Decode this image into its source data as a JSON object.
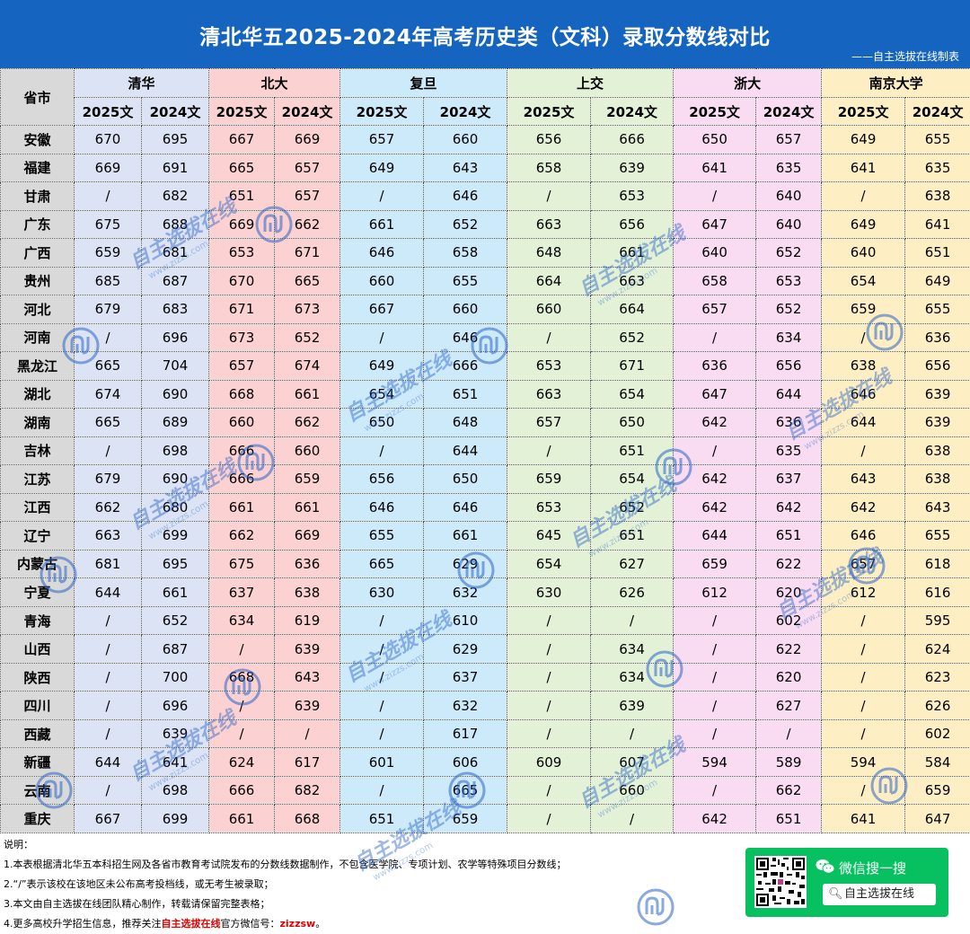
{
  "header": {
    "title": "清北华五2025-2024年高考历史类（文科）录取分数线对比",
    "credit": "——自主选拔在线制表"
  },
  "table": {
    "province_header": "省市",
    "universities": [
      "清华",
      "北大",
      "复旦",
      "上交",
      "浙大",
      "南京大学"
    ],
    "year_labels": [
      "2025文",
      "2024文"
    ],
    "rows": [
      {
        "province": "安徽",
        "scores": [
          "670",
          "695",
          "667",
          "669",
          "657",
          "660",
          "656",
          "666",
          "650",
          "657",
          "649",
          "655"
        ]
      },
      {
        "province": "福建",
        "scores": [
          "669",
          "691",
          "665",
          "657",
          "649",
          "643",
          "658",
          "639",
          "641",
          "635",
          "641",
          "635"
        ]
      },
      {
        "province": "甘肃",
        "scores": [
          "/",
          "682",
          "651",
          "657",
          "/",
          "646",
          "/",
          "653",
          "/",
          "640",
          "/",
          "638"
        ]
      },
      {
        "province": "广东",
        "scores": [
          "675",
          "688",
          "669",
          "662",
          "661",
          "652",
          "663",
          "656",
          "647",
          "640",
          "649",
          "641"
        ]
      },
      {
        "province": "广西",
        "scores": [
          "659",
          "681",
          "653",
          "671",
          "646",
          "658",
          "648",
          "661",
          "640",
          "652",
          "640",
          "651"
        ]
      },
      {
        "province": "贵州",
        "scores": [
          "685",
          "687",
          "670",
          "665",
          "660",
          "655",
          "664",
          "663",
          "658",
          "653",
          "654",
          "649"
        ]
      },
      {
        "province": "河北",
        "scores": [
          "679",
          "683",
          "671",
          "673",
          "667",
          "660",
          "660",
          "664",
          "657",
          "652",
          "659",
          "655"
        ]
      },
      {
        "province": "河南",
        "scores": [
          "/",
          "696",
          "673",
          "652",
          "/",
          "646",
          "/",
          "652",
          "/",
          "634",
          "/",
          "636"
        ]
      },
      {
        "province": "黑龙江",
        "scores": [
          "665",
          "704",
          "657",
          "674",
          "649",
          "666",
          "653",
          "671",
          "636",
          "656",
          "638",
          "656"
        ]
      },
      {
        "province": "湖北",
        "scores": [
          "674",
          "690",
          "668",
          "661",
          "654",
          "651",
          "663",
          "654",
          "647",
          "644",
          "646",
          "639"
        ]
      },
      {
        "province": "湖南",
        "scores": [
          "665",
          "689",
          "660",
          "662",
          "650",
          "648",
          "657",
          "650",
          "642",
          "636",
          "644",
          "639"
        ]
      },
      {
        "province": "吉林",
        "scores": [
          "/",
          "698",
          "666",
          "660",
          "/",
          "644",
          "/",
          "651",
          "/",
          "635",
          "/",
          "638"
        ]
      },
      {
        "province": "江苏",
        "scores": [
          "679",
          "690",
          "666",
          "659",
          "656",
          "650",
          "659",
          "654",
          "642",
          "637",
          "643",
          "638"
        ]
      },
      {
        "province": "江西",
        "scores": [
          "662",
          "680",
          "661",
          "661",
          "646",
          "646",
          "653",
          "652",
          "642",
          "642",
          "642",
          "643"
        ]
      },
      {
        "province": "辽宁",
        "scores": [
          "663",
          "699",
          "662",
          "669",
          "655",
          "661",
          "645",
          "651",
          "644",
          "651",
          "646",
          "655"
        ]
      },
      {
        "province": "内蒙古",
        "scores": [
          "681",
          "695",
          "675",
          "636",
          "665",
          "629",
          "654",
          "627",
          "659",
          "622",
          "657",
          "618"
        ]
      },
      {
        "province": "宁夏",
        "scores": [
          "644",
          "661",
          "637",
          "638",
          "630",
          "632",
          "630",
          "626",
          "612",
          "620",
          "612",
          "616"
        ]
      },
      {
        "province": "青海",
        "scores": [
          "/",
          "652",
          "634",
          "619",
          "/",
          "610",
          "/",
          "/",
          "/",
          "602",
          "/",
          "595"
        ]
      },
      {
        "province": "山西",
        "scores": [
          "/",
          "687",
          "/",
          "639",
          "/",
          "629",
          "/",
          "634",
          "/",
          "622",
          "/",
          "624"
        ]
      },
      {
        "province": "陕西",
        "scores": [
          "/",
          "700",
          "668",
          "643",
          "/",
          "637",
          "/",
          "634",
          "/",
          "620",
          "/",
          "623"
        ]
      },
      {
        "province": "四川",
        "scores": [
          "/",
          "696",
          "/",
          "639",
          "/",
          "632",
          "/",
          "639",
          "/",
          "627",
          "/",
          "626"
        ]
      },
      {
        "province": "西藏",
        "scores": [
          "/",
          "639",
          "/",
          "/",
          "/",
          "617",
          "/",
          "/",
          "/",
          "/",
          "/",
          "602"
        ]
      },
      {
        "province": "新疆",
        "scores": [
          "644",
          "641",
          "624",
          "617",
          "601",
          "606",
          "609",
          "607",
          "594",
          "589",
          "594",
          "584"
        ]
      },
      {
        "province": "云南",
        "scores": [
          "/",
          "698",
          "666",
          "682",
          "/",
          "665",
          "/",
          "660",
          "/",
          "662",
          "/",
          "659"
        ]
      },
      {
        "province": "重庆",
        "scores": [
          "667",
          "699",
          "661",
          "668",
          "651",
          "659",
          "/",
          "/",
          "642",
          "651",
          "641",
          "647"
        ]
      }
    ]
  },
  "notes": {
    "heading": "说明：",
    "line1": "1.本表根据清北华五本科招生网及各省市教育考试院发布的分数线数据制作，不包含医学院、专项计划、农学等特殊项目分数线；",
    "line2": "2.“/”表示该校在该地区未公布高考投档线，或无考生被录取；",
    "line3": "3.本文由自主选拔在线团队精心制作，转载请保留完整表格；",
    "line4_prefix": "4.更多高校升学招生信息，推荐关注",
    "line4_brand": "自主选拔在线",
    "line4_mid": "官方微信号：",
    "line4_account": "zizzsw",
    "line4_suffix": "。"
  },
  "wechat": {
    "search_label": "微信搜一搜",
    "search_query": "自主选拔在线"
  },
  "watermark": {
    "text": "自主选拔在线",
    "url": "www.zizzs.com",
    "color": "#2b64c8"
  },
  "colors": {
    "header_bg": "#1565c0",
    "tsinghua": "#dbe3f5",
    "pku": "#fbd1d1",
    "fudan": "#cdeafb",
    "sjtu": "#e3f1d7",
    "zju": "#f9dbf2",
    "nju": "#fdefc3",
    "wechat_green": "#07c160"
  }
}
